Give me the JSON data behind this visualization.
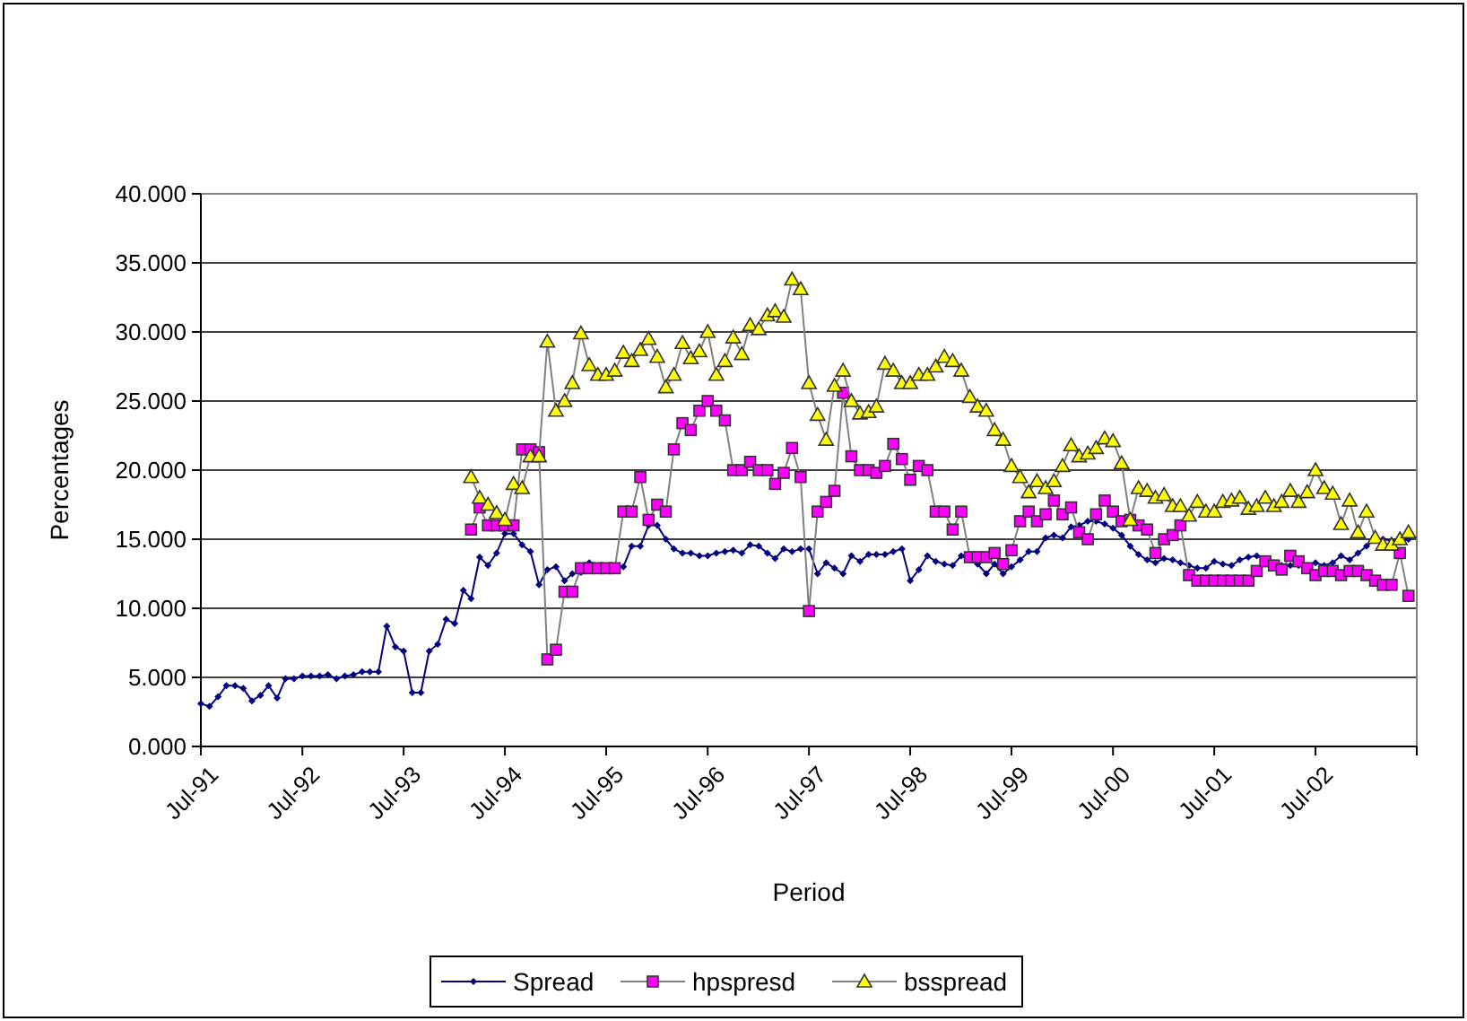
{
  "chart_data": {
    "type": "line",
    "xlabel": "Period",
    "ylabel": "Percentages",
    "x": [
      "1991-07",
      "1991-08",
      "1991-09",
      "1991-10",
      "1991-11",
      "1991-12",
      "1992-01",
      "1992-02",
      "1992-03",
      "1992-04",
      "1992-05",
      "1992-06",
      "1992-07",
      "1992-08",
      "1992-09",
      "1992-10",
      "1992-11",
      "1992-12",
      "1993-01",
      "1993-02",
      "1993-03",
      "1993-04",
      "1993-05",
      "1993-06",
      "1993-07",
      "1993-08",
      "1993-09",
      "1993-10",
      "1993-11",
      "1993-12",
      "1994-01",
      "1994-02",
      "1994-03",
      "1994-04",
      "1994-05",
      "1994-06",
      "1994-07",
      "1994-08",
      "1994-09",
      "1994-10",
      "1994-11",
      "1994-12",
      "1995-01",
      "1995-02",
      "1995-03",
      "1995-04",
      "1995-05",
      "1995-06",
      "1995-07",
      "1995-08",
      "1995-09",
      "1995-10",
      "1995-11",
      "1995-12",
      "1996-01",
      "1996-02",
      "1996-03",
      "1996-04",
      "1996-05",
      "1996-06",
      "1996-07",
      "1996-08",
      "1996-09",
      "1996-10",
      "1996-11",
      "1996-12",
      "1997-01",
      "1997-02",
      "1997-03",
      "1997-04",
      "1997-05",
      "1997-06",
      "1997-07",
      "1997-08",
      "1997-09",
      "1997-10",
      "1997-11",
      "1997-12",
      "1998-01",
      "1998-02",
      "1998-03",
      "1998-04",
      "1998-05",
      "1998-06",
      "1998-07",
      "1998-08",
      "1998-09",
      "1998-10",
      "1998-11",
      "1998-12",
      "1999-01",
      "1999-02",
      "1999-03",
      "1999-04",
      "1999-05",
      "1999-06",
      "1999-07",
      "1999-08",
      "1999-09",
      "1999-10",
      "1999-11",
      "1999-12",
      "2000-01",
      "2000-02",
      "2000-03",
      "2000-04",
      "2000-05",
      "2000-06",
      "2000-07",
      "2000-08",
      "2000-09",
      "2000-10",
      "2000-11",
      "2000-12",
      "2001-01",
      "2001-02",
      "2001-03",
      "2001-04",
      "2001-05",
      "2001-06",
      "2001-07",
      "2001-08",
      "2001-09",
      "2001-10",
      "2001-11",
      "2001-12",
      "2002-01",
      "2002-02",
      "2002-03",
      "2002-04",
      "2002-05",
      "2002-06",
      "2002-07",
      "2002-08",
      "2002-09",
      "2002-10",
      "2002-11",
      "2002-12",
      "2003-01",
      "2003-02",
      "2003-03",
      "2003-04",
      "2003-05",
      "2003-06"
    ],
    "series": [
      {
        "name": "Spread",
        "color": "#000080",
        "marker": "diamond",
        "values": [
          3.1,
          2.9,
          3.6,
          4.4,
          4.4,
          4.2,
          3.3,
          3.7,
          4.4,
          3.5,
          4.9,
          4.9,
          5.1,
          5.1,
          5.1,
          5.2,
          4.9,
          5.1,
          5.2,
          5.4,
          5.4,
          5.4,
          8.7,
          7.2,
          6.9,
          3.9,
          3.9,
          6.9,
          7.4,
          9.2,
          8.9,
          11.3,
          10.7,
          13.7,
          13.1,
          14.0,
          15.4,
          15.4,
          14.6,
          14.1,
          11.7,
          12.8,
          13.0,
          12.0,
          12.5,
          12.6,
          13.3,
          13.0,
          12.9,
          13.0,
          13.0,
          14.5,
          14.5,
          16.0,
          16.0,
          15.0,
          14.3,
          14.0,
          14.0,
          13.8,
          13.8,
          14.0,
          14.1,
          14.2,
          14.0,
          14.6,
          14.5,
          14.0,
          13.6,
          14.3,
          14.1,
          14.3,
          14.3,
          12.5,
          13.3,
          12.9,
          12.5,
          13.8,
          13.4,
          13.9,
          13.9,
          13.9,
          14.1,
          14.3,
          12.0,
          12.8,
          13.8,
          13.4,
          13.2,
          13.1,
          13.8,
          13.5,
          13.2,
          12.5,
          13.2,
          12.5,
          13.0,
          13.5,
          14.1,
          14.1,
          15.1,
          15.3,
          15.1,
          15.9,
          16.0,
          16.3,
          16.3,
          16.1,
          15.8,
          15.3,
          14.5,
          13.9,
          13.5,
          13.3,
          13.6,
          13.5,
          13.3,
          13.1,
          12.9,
          12.9,
          13.4,
          13.2,
          13.1,
          13.5,
          13.7,
          13.8,
          13.5,
          13.3,
          13.1,
          13.1,
          13.1,
          13.1,
          13.3,
          13.1,
          13.3,
          13.8,
          13.5,
          14.0,
          14.5,
          15.0,
          15.0,
          14.9,
          14.8,
          15.0
        ]
      },
      {
        "name": "hpspresd",
        "color": "#ff00ff",
        "marker": "square",
        "values": [
          null,
          null,
          null,
          null,
          null,
          null,
          null,
          null,
          null,
          null,
          null,
          null,
          null,
          null,
          null,
          null,
          null,
          null,
          null,
          null,
          null,
          null,
          null,
          null,
          null,
          null,
          null,
          null,
          null,
          null,
          null,
          null,
          15.7,
          17.3,
          16.0,
          16.0,
          16.0,
          16.0,
          21.5,
          21.5,
          21.3,
          6.3,
          7.0,
          11.2,
          11.2,
          12.9,
          12.9,
          12.9,
          12.9,
          12.9,
          17.0,
          17.0,
          19.5,
          16.4,
          17.5,
          17.0,
          21.5,
          23.4,
          22.9,
          24.3,
          25.0,
          24.3,
          23.6,
          20.0,
          20.0,
          20.6,
          20.0,
          20.0,
          19.0,
          19.8,
          21.6,
          19.5,
          9.8,
          17.0,
          17.7,
          18.5,
          25.6,
          21.0,
          20.0,
          20.0,
          19.8,
          20.3,
          21.9,
          20.8,
          19.3,
          20.3,
          20.0,
          17.0,
          17.0,
          15.7,
          17.0,
          13.7,
          13.7,
          13.7,
          14.0,
          13.2,
          14.2,
          16.3,
          17.0,
          16.3,
          16.8,
          17.8,
          16.8,
          17.3,
          15.5,
          15.0,
          16.8,
          17.8,
          17.0,
          16.3,
          16.4,
          16.0,
          15.7,
          14.0,
          15.0,
          15.3,
          16.0,
          12.4,
          12.0,
          12.0,
          12.0,
          12.0,
          12.0,
          12.0,
          12.0,
          12.7,
          13.4,
          13.1,
          12.8,
          13.8,
          13.4,
          12.9,
          12.4,
          12.7,
          12.7,
          12.4,
          12.7,
          12.7,
          12.4,
          12.0,
          11.7,
          11.7,
          14.0,
          10.9
        ]
      },
      {
        "name": "bsspread",
        "color": "#ffff00",
        "marker": "triangle",
        "values": [
          null,
          null,
          null,
          null,
          null,
          null,
          null,
          null,
          null,
          null,
          null,
          null,
          null,
          null,
          null,
          null,
          null,
          null,
          null,
          null,
          null,
          null,
          null,
          null,
          null,
          null,
          null,
          null,
          null,
          null,
          null,
          null,
          19.5,
          18.0,
          17.5,
          16.9,
          16.4,
          19.0,
          18.7,
          21.0,
          21.0,
          29.3,
          24.3,
          25.0,
          26.3,
          29.9,
          27.6,
          26.9,
          26.9,
          27.2,
          28.5,
          27.9,
          28.7,
          29.5,
          28.2,
          26.0,
          26.9,
          29.2,
          28.1,
          28.6,
          30.0,
          26.9,
          27.9,
          29.6,
          28.4,
          30.5,
          30.2,
          31.2,
          31.5,
          31.1,
          33.8,
          33.1,
          26.3,
          24.0,
          22.2,
          26.1,
          27.2,
          25.0,
          24.1,
          24.2,
          24.6,
          27.7,
          27.2,
          26.3,
          26.3,
          26.9,
          26.9,
          27.5,
          28.2,
          27.9,
          27.2,
          25.3,
          24.6,
          24.3,
          22.9,
          22.2,
          20.3,
          19.5,
          18.4,
          19.2,
          18.7,
          19.2,
          20.3,
          21.8,
          21.0,
          21.2,
          21.6,
          22.3,
          22.1,
          20.5,
          16.4,
          18.7,
          18.5,
          18.0,
          18.2,
          17.4,
          17.4,
          16.7,
          17.7,
          17.0,
          17.0,
          17.7,
          17.8,
          18.0,
          17.2,
          17.4,
          18.0,
          17.4,
          17.7,
          18.5,
          17.7,
          18.4,
          20.0,
          18.7,
          18.3,
          16.1,
          17.8,
          15.5,
          17.0,
          15.1,
          14.6,
          14.6,
          15.0,
          15.5
        ]
      }
    ],
    "xlim": [
      "1991-07",
      "2003-07"
    ],
    "xticks": [
      {
        "value": "1991-07",
        "label": "Jul-91"
      },
      {
        "value": "1992-07",
        "label": "Jul-92"
      },
      {
        "value": "1993-07",
        "label": "Jul-93"
      },
      {
        "value": "1994-07",
        "label": "Jul-94"
      },
      {
        "value": "1995-07",
        "label": "Jul-95"
      },
      {
        "value": "1996-07",
        "label": "Jul-96"
      },
      {
        "value": "1997-07",
        "label": "Jul-97"
      },
      {
        "value": "1998-07",
        "label": "Jul-98"
      },
      {
        "value": "1999-07",
        "label": "Jul-99"
      },
      {
        "value": "2000-07",
        "label": "Jul-00"
      },
      {
        "value": "2001-07",
        "label": "Jul-01"
      },
      {
        "value": "2002-07",
        "label": "Jul-02"
      },
      {
        "value": "2003-07",
        "label": null
      }
    ],
    "ylim": [
      0,
      40
    ],
    "yticks": [
      {
        "value": 0,
        "label": "0.000"
      },
      {
        "value": 5,
        "label": "5.000"
      },
      {
        "value": 10,
        "label": "10.000"
      },
      {
        "value": 15,
        "label": "15.000"
      },
      {
        "value": 20,
        "label": "20.000"
      },
      {
        "value": 25,
        "label": "25.000"
      },
      {
        "value": 30,
        "label": "30.000"
      },
      {
        "value": 35,
        "label": "35.000"
      },
      {
        "value": 40,
        "label": "40.000"
      }
    ],
    "grid": "y",
    "legend": "bottom",
    "line_style": "solid"
  }
}
